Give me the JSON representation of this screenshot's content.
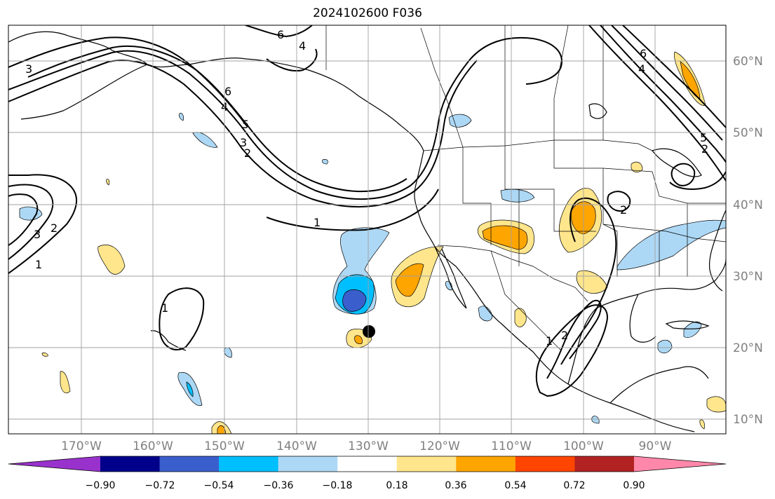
{
  "title": "2024102600 F036",
  "latitude_labels": [
    "60°N",
    "50°N",
    "40°N",
    "30°N",
    "20°N",
    "10°N"
  ],
  "longitude_labels": [
    "170°W",
    "160°W",
    "150°W",
    "140°W",
    "130°W",
    "120°W",
    "110°W",
    "100°W",
    "90°W"
  ],
  "colorbar": {
    "tick_labels": [
      "−0.90",
      "−0.72",
      "−0.54",
      "−0.36",
      "−0.18",
      "0.18",
      "0.36",
      "0.54",
      "0.72",
      "0.90"
    ],
    "colors": [
      "#9932cc",
      "#00008b",
      "#3a5fcd",
      "#00bfff",
      "#add8f5",
      "#ffffff",
      "#ffe68c",
      "#ffa500",
      "#ff4500",
      "#b22222",
      "#ff88aa"
    ]
  },
  "contour_labels": [
    "6",
    "4",
    "3",
    "6",
    "4",
    "5",
    "3",
    "2",
    "1",
    "3",
    "2",
    "1",
    "1",
    "1",
    "2",
    "2",
    "6",
    "4",
    "5",
    "2"
  ],
  "colors": {
    "grid": "#a0a0a0",
    "coast": "#000000",
    "contour": "#000000"
  }
}
